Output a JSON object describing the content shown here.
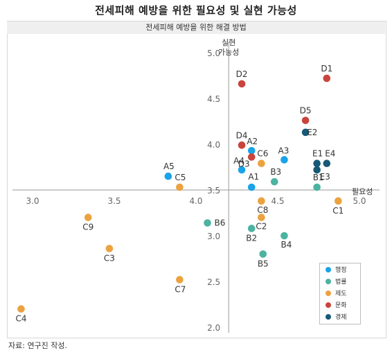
{
  "title": "전세피해 예방을 위한 필요성 및 실현 가능성",
  "subtitle": "전세피해 예방을 위한 해결 방법",
  "source": "자료: 연구진 작성.",
  "chart_data": {
    "type": "scatter",
    "xlabel": "필요성",
    "ylabel_line1": "실현",
    "ylabel_line2": "가능성",
    "xlim": [
      2.9,
      5.2
    ],
    "ylim": [
      2.0,
      5.0
    ],
    "x_ticks": [
      3.0,
      3.5,
      4.0,
      4.5,
      5.0
    ],
    "y_ticks": [
      2.0,
      2.5,
      3.0,
      3.5,
      4.0,
      4.5,
      5.0
    ],
    "x_tick_labels": [
      "3.0",
      "3.5",
      "4.0",
      "4.5",
      "5.0"
    ],
    "y_tick_labels": [
      "2.0",
      "2.5",
      "3.0",
      "3.5",
      "4.0",
      "4.5",
      "5.0"
    ],
    "axis_cross": {
      "x": 4.2,
      "y": 3.5
    },
    "series": [
      {
        "name": "행정",
        "color": "#1aa3e8",
        "points": [
          {
            "label": "A1",
            "x": 4.34,
            "y": 3.53
          },
          {
            "label": "A2",
            "x": 4.34,
            "y": 3.93
          },
          {
            "label": "A3",
            "x": 4.54,
            "y": 3.83
          },
          {
            "label": "A4",
            "x": 4.28,
            "y": 3.72
          },
          {
            "label": "A5",
            "x": 3.83,
            "y": 3.65
          }
        ]
      },
      {
        "name": "법률",
        "color": "#4bb3a0",
        "points": [
          {
            "label": "B1",
            "x": 4.74,
            "y": 3.53
          },
          {
            "label": "B2",
            "x": 4.34,
            "y": 3.08
          },
          {
            "label": "B3",
            "x": 4.48,
            "y": 3.59
          },
          {
            "label": "B4",
            "x": 4.54,
            "y": 3.0
          },
          {
            "label": "B5",
            "x": 4.41,
            "y": 2.8
          },
          {
            "label": "B6",
            "x": 4.07,
            "y": 3.14
          }
        ]
      },
      {
        "name": "제도",
        "color": "#eba23f",
        "points": [
          {
            "label": "C1",
            "x": 4.87,
            "y": 3.38
          },
          {
            "label": "C2",
            "x": 4.4,
            "y": 3.2
          },
          {
            "label": "C3",
            "x": 3.47,
            "y": 2.86
          },
          {
            "label": "C4",
            "x": 2.93,
            "y": 2.2
          },
          {
            "label": "C5",
            "x": 3.9,
            "y": 3.53
          },
          {
            "label": "C6",
            "x": 4.4,
            "y": 3.79
          },
          {
            "label": "C7",
            "x": 3.9,
            "y": 2.52
          },
          {
            "label": "C8",
            "x": 4.4,
            "y": 3.38
          },
          {
            "label": "C9",
            "x": 3.34,
            "y": 3.2
          }
        ]
      },
      {
        "name": "문화",
        "color": "#c9443c",
        "points": [
          {
            "label": "D1",
            "x": 4.8,
            "y": 4.72
          },
          {
            "label": "D2",
            "x": 4.28,
            "y": 4.66
          },
          {
            "label": "D3",
            "x": 4.34,
            "y": 3.86
          },
          {
            "label": "D4",
            "x": 4.28,
            "y": 3.99
          },
          {
            "label": "D5",
            "x": 4.67,
            "y": 4.26
          }
        ]
      },
      {
        "name": "경제",
        "color": "#175a77",
        "points": [
          {
            "label": "E1",
            "x": 4.74,
            "y": 3.79
          },
          {
            "label": "E2",
            "x": 4.67,
            "y": 4.13
          },
          {
            "label": "E3",
            "x": 4.74,
            "y": 3.72
          },
          {
            "label": "E4",
            "x": 4.8,
            "y": 3.79
          }
        ]
      }
    ]
  }
}
